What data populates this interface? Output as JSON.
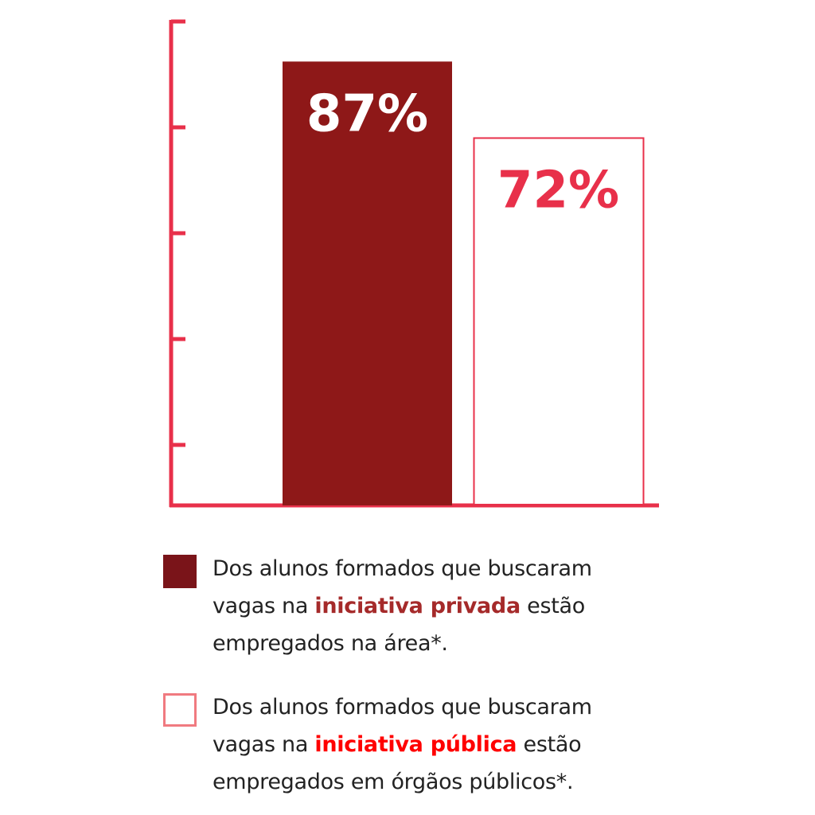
{
  "colors": {
    "axis": "#e8304a",
    "private_bar": "#8e1818",
    "public_bar_border": "#e8304a",
    "private_highlight": "#a52a2a",
    "public_highlight": "#ff0000",
    "legend_swatch_private": "#7a1419",
    "legend_swatch_public": "#f07a80"
  },
  "chart_data": {
    "type": "bar",
    "categories": [
      "iniciativa privada",
      "iniciativa pública"
    ],
    "values": [
      87,
      72
    ],
    "data_labels": [
      "87%",
      "72%"
    ],
    "title": "",
    "xlabel": "",
    "ylabel": "",
    "grid": false,
    "legend_placement": "bottom"
  },
  "legend": [
    {
      "line1": "Dos alunos formados que buscaram",
      "pre": "vagas na ",
      "highlight": "iniciativa privada",
      "post": " estão",
      "line3": "empregados na área*."
    },
    {
      "line1": "Dos alunos formados que buscaram",
      "pre": "vagas na ",
      "highlight": "iniciativa pública",
      "post": " estão",
      "line3": "empregados em órgãos públicos*."
    }
  ]
}
